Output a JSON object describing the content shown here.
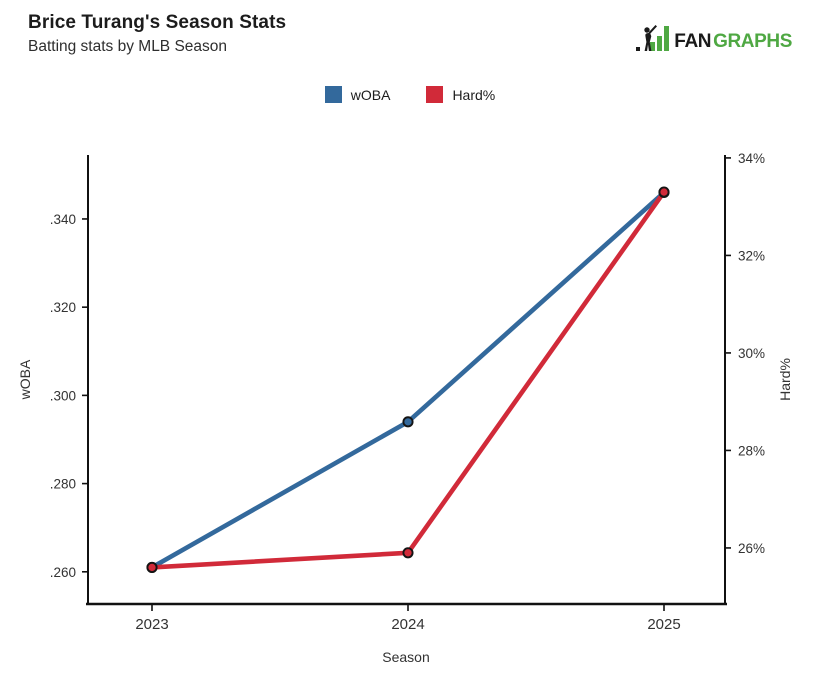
{
  "header": {
    "title": "Brice Turang's Season Stats",
    "subtitle": "Batting stats by MLB Season"
  },
  "logo": {
    "fan": "FAN",
    "graphs": "GRAPHS",
    "green": "#4FA843",
    "black": "#1A1A1A"
  },
  "legend": {
    "items": [
      {
        "label": "wOBA",
        "color": "#33699C"
      },
      {
        "label": "Hard%",
        "color": "#D12A39"
      }
    ]
  },
  "chart_data": {
    "type": "line",
    "categories": [
      "2023",
      "2024",
      "2025"
    ],
    "series": [
      {
        "name": "wOBA",
        "axis": "left",
        "color": "#33699C",
        "values": [
          0.261,
          0.294,
          0.346
        ]
      },
      {
        "name": "Hard%",
        "axis": "right",
        "color": "#D12A39",
        "values": [
          25.6,
          25.9,
          33.3
        ]
      }
    ],
    "title": "Brice Turang's Season Stats",
    "subtitle": "Batting stats by MLB Season",
    "xlabel": "Season",
    "left_axis": {
      "label": "wOBA",
      "ticks": [
        0.26,
        0.28,
        0.3,
        0.32,
        0.34
      ],
      "tick_labels": [
        ".260",
        ".280",
        ".300",
        ".320",
        ".340"
      ],
      "range": [
        0.2527,
        0.3545
      ]
    },
    "right_axis": {
      "label": "Hard%",
      "ticks": [
        26,
        28,
        30,
        32,
        34
      ],
      "tick_labels": [
        "26%",
        "28%",
        "30%",
        "32%",
        "34%"
      ],
      "range": [
        24.85,
        34.06
      ]
    },
    "grid": false,
    "legend_position": "top",
    "marker": "circle-black-outline"
  }
}
